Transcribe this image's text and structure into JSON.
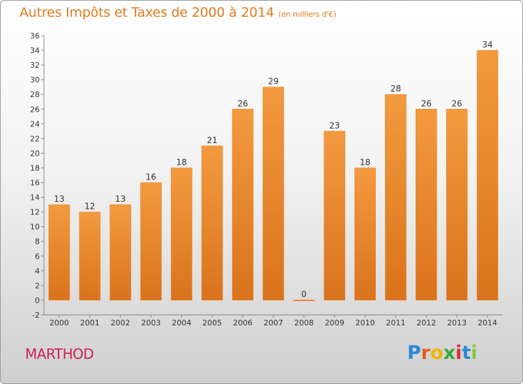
{
  "chart_data": {
    "type": "bar",
    "title": "Autres Impôts et Taxes de 2000 à 2014",
    "subtitle": "(en milliers d'€)",
    "categories": [
      "2000",
      "2001",
      "2002",
      "2003",
      "2004",
      "2005",
      "2006",
      "2007",
      "2008",
      "2009",
      "2010",
      "2011",
      "2012",
      "2013",
      "2014"
    ],
    "values": [
      13,
      12,
      13,
      16,
      18,
      21,
      26,
      29,
      0,
      23,
      18,
      28,
      26,
      26,
      34
    ],
    "ylim": [
      -2,
      36
    ],
    "yticks": [
      -2,
      0,
      2,
      4,
      6,
      8,
      10,
      12,
      14,
      16,
      18,
      20,
      22,
      24,
      26,
      28,
      30,
      32,
      34,
      36
    ],
    "grid": false,
    "bar_color": "#f39a3f",
    "bar_color_dark": "#d9731c"
  },
  "footer": {
    "city": "MARTHOD",
    "brand_letters": [
      "P",
      "r",
      "o",
      "x",
      "i",
      "t",
      "i"
    ],
    "brand_colors": [
      "#2a8ad6",
      "#e65a1e",
      "#f0b400",
      "#3aa635",
      "#d8312f",
      "#2a8ad6",
      "#8cc63f"
    ]
  }
}
